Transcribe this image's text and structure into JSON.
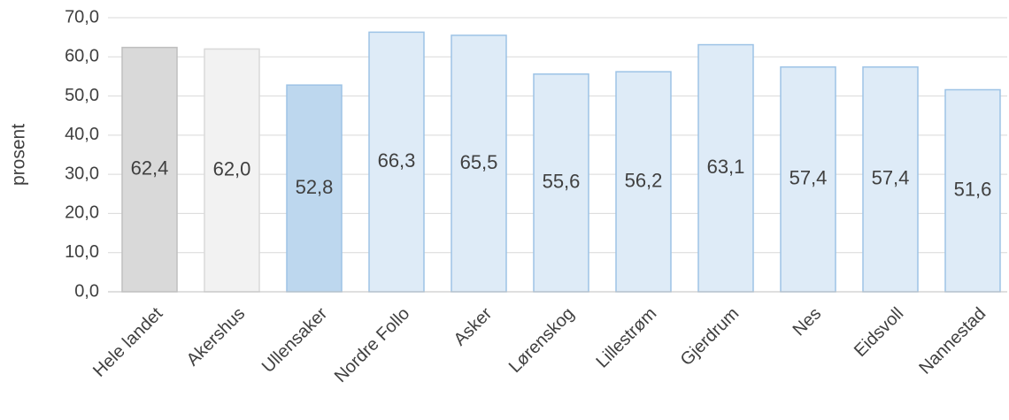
{
  "chart_data": {
    "type": "bar",
    "y_label": "prosent",
    "categories": [
      "Hele landet",
      "Akershus",
      "Ullensaker",
      "Nordre Follo",
      "Asker",
      "Lørenskog",
      "Lillestrøm",
      "Gjerdrum",
      "Nes",
      "Eidsvoll",
      "Nannestad"
    ],
    "values": [
      62.4,
      62.0,
      52.8,
      66.3,
      65.5,
      55.6,
      56.2,
      63.1,
      57.4,
      57.4,
      51.6
    ],
    "value_labels": [
      "62,4",
      "62,0",
      "52,8",
      "66,3",
      "65,5",
      "55,6",
      "56,2",
      "63,1",
      "57,4",
      "57,4",
      "51,6"
    ],
    "colors": [
      "#d9d9d9",
      "#f2f2f2",
      "#bdd7ee",
      "#deebf7",
      "#deebf7",
      "#deebf7",
      "#deebf7",
      "#deebf7",
      "#deebf7",
      "#deebf7",
      "#deebf7"
    ],
    "edge_colors": [
      "#bfbfbf",
      "#d9d9d9",
      "#9dc3e6",
      "#9dc3e6",
      "#9dc3e6",
      "#9dc3e6",
      "#9dc3e6",
      "#9dc3e6",
      "#9dc3e6",
      "#9dc3e6",
      "#9dc3e6"
    ],
    "ylim": [
      0,
      70
    ],
    "yticks": [
      {
        "value": 0,
        "label": "0,0"
      },
      {
        "value": 10,
        "label": "10,0"
      },
      {
        "value": 20,
        "label": "20,0"
      },
      {
        "value": 30,
        "label": "30,0"
      },
      {
        "value": 40,
        "label": "40,0"
      },
      {
        "value": 50,
        "label": "50,0"
      },
      {
        "value": 60,
        "label": "60,0"
      },
      {
        "value": 70,
        "label": "70,0"
      }
    ],
    "grid": true
  }
}
